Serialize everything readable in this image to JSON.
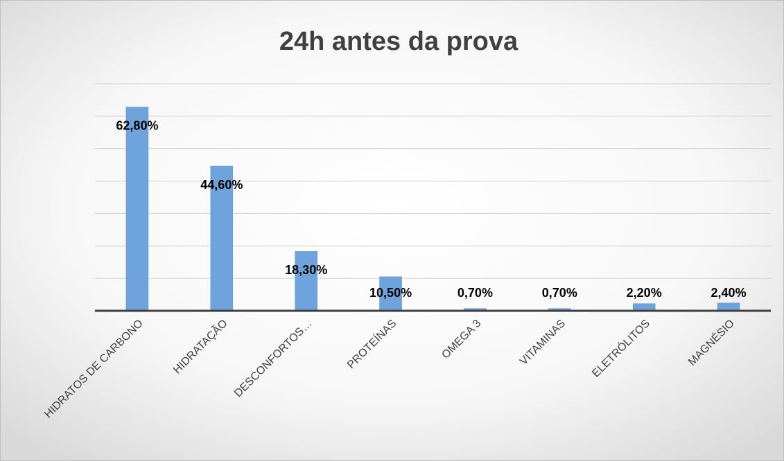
{
  "chart_data": {
    "type": "bar",
    "title": "24h antes da prova",
    "categories": [
      "HIDRATOS DE CARBONO",
      "HIDRATAÇÃO",
      "DESCONFORTOS…",
      "PROTEÍNAS",
      "OMEGA 3",
      "VITAMINAS",
      "ELETRÓLITOS",
      "MAGNÉSIO"
    ],
    "values": [
      62.8,
      44.6,
      18.3,
      10.5,
      0.7,
      0.7,
      2.2,
      2.4
    ],
    "value_labels": [
      "62,80%",
      "44,60%",
      "18,30%",
      "10,50%",
      "0,70%",
      "0,70%",
      "2,20%",
      "2,40%"
    ],
    "color": "#6fa3dc",
    "ylim": [
      0,
      70
    ],
    "yticks": [
      0,
      10,
      20,
      30,
      40,
      50,
      60,
      70
    ],
    "grid": true
  }
}
